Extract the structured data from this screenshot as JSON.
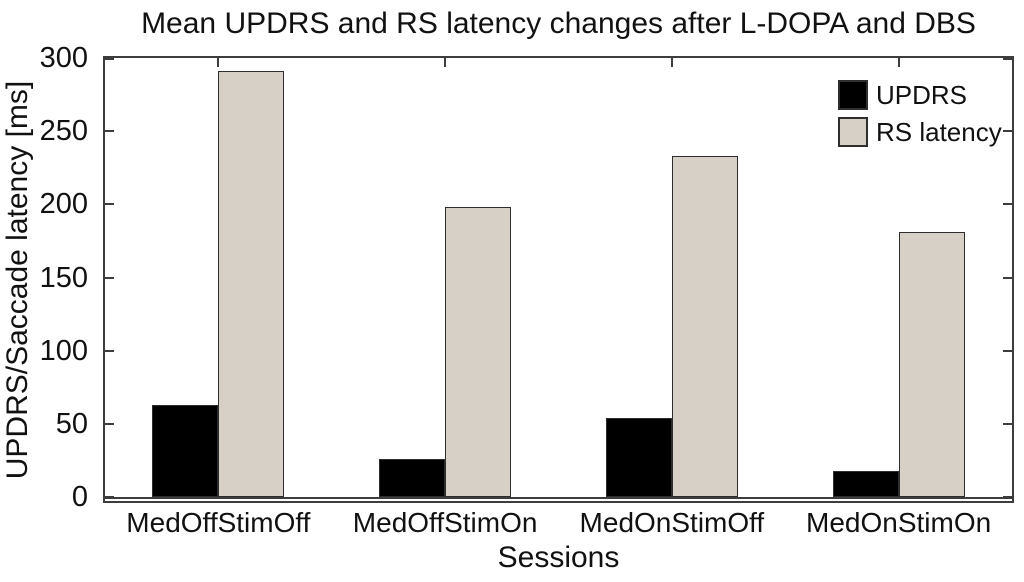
{
  "chart_data": {
    "type": "bar",
    "title": "Mean UPDRS and RS latency changes after L-DOPA and DBS",
    "xlabel": "Sessions",
    "ylabel": "UPDRS/Saccade latency [ms]",
    "categories": [
      "MedOffStimOff",
      "MedOffStimOn",
      "MedOnStimOff",
      "MedOnStimOn"
    ],
    "series": [
      {
        "name": "UPDRS",
        "color": "#000000",
        "values": [
          63,
          26,
          54,
          18
        ]
      },
      {
        "name": "RS latency",
        "color": "#d6d0c7",
        "values": [
          291,
          198,
          233,
          181
        ]
      }
    ],
    "ylim": [
      0,
      300
    ],
    "yticks": [
      0,
      50,
      100,
      150,
      200,
      250,
      300
    ],
    "grid": false,
    "legend_position": "upper right",
    "colors": {
      "axis": "#3d3d3d",
      "bar_edge": "#2e2e2e",
      "text": "#111111",
      "background": "#ffffff"
    }
  }
}
